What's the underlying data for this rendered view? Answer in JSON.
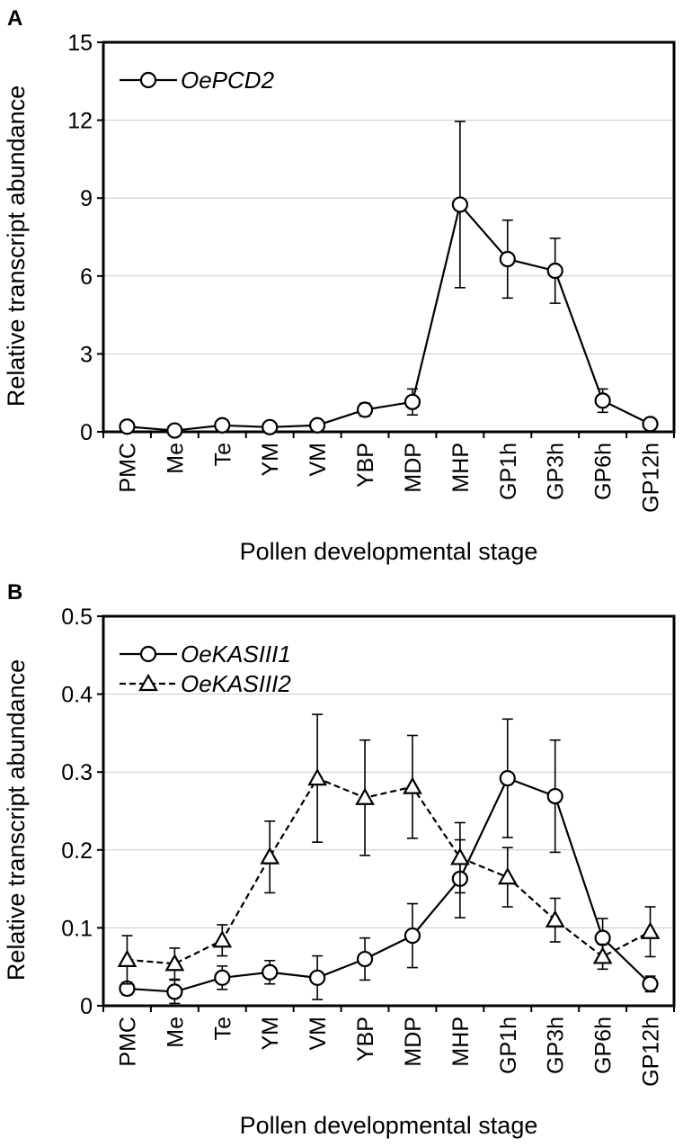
{
  "chart_data": [
    {
      "type": "line",
      "panel_label": "A",
      "xlabel": "Pollen developmental stage",
      "ylabel": "Relative transcript abundance",
      "ylim": [
        0,
        15
      ],
      "yticks": [
        "0",
        "3",
        "6",
        "9",
        "12",
        "15"
      ],
      "ytick_values": [
        0,
        3,
        6,
        9,
        12,
        15
      ],
      "categories": [
        "PMC",
        "Me",
        "Te",
        "YM",
        "VM",
        "YBP",
        "MDP",
        "MHP",
        "GP1h",
        "GP3h",
        "GP6h",
        "GP12h"
      ],
      "grid": true,
      "legend_position": "top-left",
      "series": [
        {
          "name": "OePCD2",
          "marker": "circle",
          "line_style": "solid",
          "values": [
            0.2,
            0.05,
            0.25,
            0.18,
            0.25,
            0.85,
            1.15,
            8.75,
            6.65,
            6.2,
            1.2,
            0.3
          ],
          "errors": [
            0.05,
            0.05,
            0.05,
            0.05,
            0.05,
            0.25,
            0.5,
            3.2,
            1.5,
            1.25,
            0.45,
            0.05
          ]
        }
      ]
    },
    {
      "type": "line",
      "panel_label": "B",
      "xlabel": "Pollen developmental stage",
      "ylabel": "Relative transcript abundance",
      "ylim": [
        0,
        0.5
      ],
      "yticks": [
        "0",
        "0.1",
        "0.2",
        "0.3",
        "0.4",
        "0.5"
      ],
      "ytick_values": [
        0,
        0.1,
        0.2,
        0.3,
        0.4,
        0.5
      ],
      "categories": [
        "PMC",
        "Me",
        "Te",
        "YM",
        "VM",
        "YBP",
        "MDP",
        "MHP",
        "GP1h",
        "GP3h",
        "GP6h",
        "GP12h"
      ],
      "grid": true,
      "legend_position": "top-left",
      "series": [
        {
          "name": "OeKASIII1",
          "marker": "circle",
          "line_style": "solid",
          "values": [
            0.022,
            0.018,
            0.036,
            0.043,
            0.036,
            0.06,
            0.09,
            0.163,
            0.292,
            0.269,
            0.087,
            0.028
          ],
          "errors": [
            0.008,
            0.015,
            0.015,
            0.015,
            0.028,
            0.027,
            0.041,
            0.05,
            0.076,
            0.072,
            0.025,
            0.01
          ]
        },
        {
          "name": "OeKASIII2",
          "marker": "triangle",
          "line_style": "dashed",
          "values": [
            0.059,
            0.054,
            0.084,
            0.191,
            0.292,
            0.267,
            0.281,
            0.19,
            0.165,
            0.11,
            0.063,
            0.095
          ],
          "errors": [
            0.031,
            0.02,
            0.02,
            0.046,
            0.082,
            0.074,
            0.066,
            0.045,
            0.038,
            0.028,
            0.016,
            0.032
          ]
        }
      ]
    }
  ]
}
